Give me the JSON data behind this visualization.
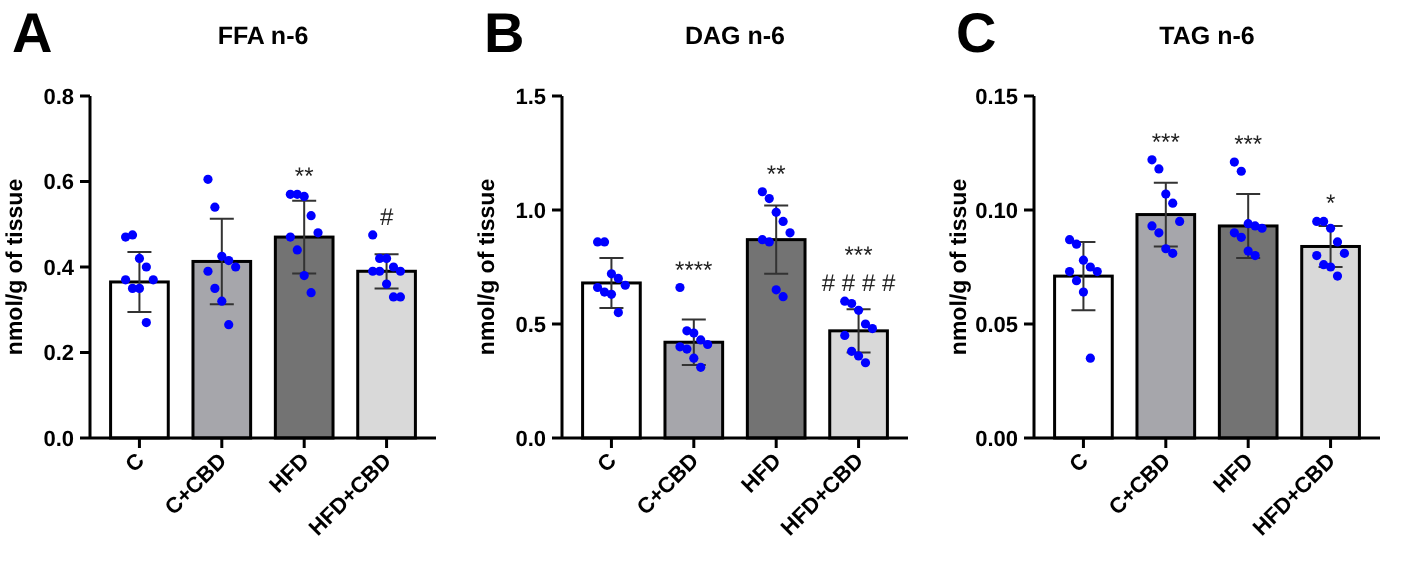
{
  "chart_data": [
    {
      "type": "bar",
      "title": "FFA n-6",
      "ylabel": "nmol/g of tissue",
      "categories": [
        "C",
        "C+CBD",
        "HFD",
        "HFD+CBD"
      ],
      "ylim": [
        0,
        0.8
      ],
      "yticks": [
        {
          "value": 0,
          "label": "0.0"
        },
        0.2,
        0.4,
        0.6,
        0.8
      ],
      "grid": false,
      "series": [
        {
          "colors": [
            "#ffffff",
            "#a6a6ab",
            "#737373",
            "#d9d9d9"
          ],
          "values": [
            0.365,
            0.413,
            0.47,
            0.39
          ],
          "errors": [
            0.07,
            0.1,
            0.085,
            0.04
          ]
        },
        {
          "type": "scatter",
          "color": "#0000ff",
          "marker": "circle",
          "x": [
            "C",
            "C",
            "C",
            "C",
            "C",
            "C",
            "C",
            "C",
            "C",
            "C+CBD",
            "C+CBD",
            "C+CBD",
            "C+CBD",
            "C+CBD",
            "C+CBD",
            "C+CBD",
            "C+CBD",
            "C+CBD",
            "HFD",
            "HFD",
            "HFD",
            "HFD",
            "HFD",
            "HFD",
            "HFD",
            "HFD",
            "HFD",
            "HFD+CBD",
            "HFD+CBD",
            "HFD+CBD",
            "HFD+CBD",
            "HFD+CBD",
            "HFD+CBD",
            "HFD+CBD",
            "HFD+CBD",
            "HFD+CBD",
            "HFD+CBD"
          ],
          "values": [
            0.47,
            0.475,
            0.42,
            0.4,
            0.37,
            0.37,
            0.35,
            0.35,
            0.27,
            0.605,
            0.54,
            0.425,
            0.415,
            0.4,
            0.39,
            0.35,
            0.32,
            0.265,
            0.57,
            0.57,
            0.565,
            0.52,
            0.48,
            0.47,
            0.44,
            0.38,
            0.34,
            0.475,
            0.42,
            0.42,
            0.4,
            0.39,
            0.39,
            0.39,
            0.36,
            0.33,
            0.33
          ]
        }
      ],
      "annotations": [
        "A",
        "**",
        "#"
      ]
    },
    {
      "type": "bar",
      "title": "DAG n-6",
      "ylabel": "nmol/g of tissue",
      "categories": [
        "C",
        "C+CBD",
        "HFD",
        "HFD+CBD"
      ],
      "ylim": [
        0,
        1.5
      ],
      "yticks": [
        {
          "value": 0,
          "label": "0.0"
        },
        {
          "value": 0.5,
          "label": "0.5"
        },
        {
          "value": 1,
          "label": "1.0"
        },
        {
          "value": 1.5,
          "label": "1.5"
        }
      ],
      "grid": false,
      "series": [
        {
          "colors": [
            "#ffffff",
            "#a6a6ab",
            "#737373",
            "#d9d9d9"
          ],
          "values": [
            0.68,
            0.42,
            0.87,
            0.47
          ],
          "errors": [
            0.11,
            0.1,
            0.15,
            0.095
          ]
        },
        {
          "type": "scatter",
          "color": "#0000ff",
          "marker": "circle",
          "x": [
            "C",
            "C",
            "C",
            "C",
            "C",
            "C",
            "C",
            "C",
            "C",
            "C+CBD",
            "C+CBD",
            "C+CBD",
            "C+CBD",
            "C+CBD",
            "C+CBD",
            "C+CBD",
            "C+CBD",
            "C+CBD",
            "HFD",
            "HFD",
            "HFD",
            "HFD",
            "HFD",
            "HFD",
            "HFD",
            "HFD",
            "HFD",
            "HFD+CBD",
            "HFD+CBD",
            "HFD+CBD",
            "HFD+CBD",
            "HFD+CBD",
            "HFD+CBD",
            "HFD+CBD",
            "HFD+CBD",
            "HFD+CBD"
          ],
          "values": [
            0.86,
            0.86,
            0.72,
            0.7,
            0.67,
            0.66,
            0.64,
            0.63,
            0.55,
            0.66,
            0.47,
            0.46,
            0.43,
            0.41,
            0.4,
            0.39,
            0.35,
            0.31,
            1.08,
            1.05,
            0.99,
            0.95,
            0.9,
            0.87,
            0.86,
            0.65,
            0.62,
            0.6,
            0.59,
            0.56,
            0.5,
            0.48,
            0.45,
            0.38,
            0.36,
            0.33
          ]
        }
      ],
      "annotations": [
        "B",
        "****",
        "**",
        "***",
        "# # # #"
      ]
    },
    {
      "type": "bar",
      "title": "TAG n-6",
      "ylabel": "nmol/g of tissue",
      "categories": [
        "C",
        "C+CBD",
        "HFD",
        "HFD+CBD"
      ],
      "ylim": [
        0,
        0.15
      ],
      "yticks": [
        {
          "value": 0,
          "label": "0.00"
        },
        {
          "value": 0.05,
          "label": "0.05"
        },
        {
          "value": 0.1,
          "label": "0.10"
        },
        0.15
      ],
      "grid": false,
      "series": [
        {
          "colors": [
            "#ffffff",
            "#a6a6ab",
            "#737373",
            "#d9d9d9"
          ],
          "values": [
            0.071,
            0.098,
            0.093,
            0.084
          ],
          "errors": [
            0.015,
            0.014,
            0.014,
            0.009
          ]
        },
        {
          "type": "scatter",
          "color": "#0000ff",
          "marker": "circle",
          "x": [
            "C",
            "C",
            "C",
            "C",
            "C",
            "C",
            "C",
            "C",
            "C",
            "C+CBD",
            "C+CBD",
            "C+CBD",
            "C+CBD",
            "C+CBD",
            "C+CBD",
            "C+CBD",
            "C+CBD",
            "C+CBD",
            "HFD",
            "HFD",
            "HFD",
            "HFD",
            "HFD",
            "HFD",
            "HFD",
            "HFD",
            "HFD",
            "HFD+CBD",
            "HFD+CBD",
            "HFD+CBD",
            "HFD+CBD",
            "HFD+CBD",
            "HFD+CBD",
            "HFD+CBD",
            "HFD+CBD",
            "HFD+CBD"
          ],
          "values": [
            0.087,
            0.085,
            0.078,
            0.075,
            0.073,
            0.073,
            0.069,
            0.064,
            0.035,
            0.122,
            0.118,
            0.107,
            0.103,
            0.095,
            0.093,
            0.09,
            0.083,
            0.081,
            0.121,
            0.117,
            0.094,
            0.093,
            0.092,
            0.09,
            0.088,
            0.082,
            0.08,
            0.095,
            0.095,
            0.092,
            0.086,
            0.081,
            0.08,
            0.076,
            0.075,
            0.071
          ]
        }
      ],
      "annotations": [
        "C",
        "***",
        "***",
        "*"
      ]
    }
  ]
}
